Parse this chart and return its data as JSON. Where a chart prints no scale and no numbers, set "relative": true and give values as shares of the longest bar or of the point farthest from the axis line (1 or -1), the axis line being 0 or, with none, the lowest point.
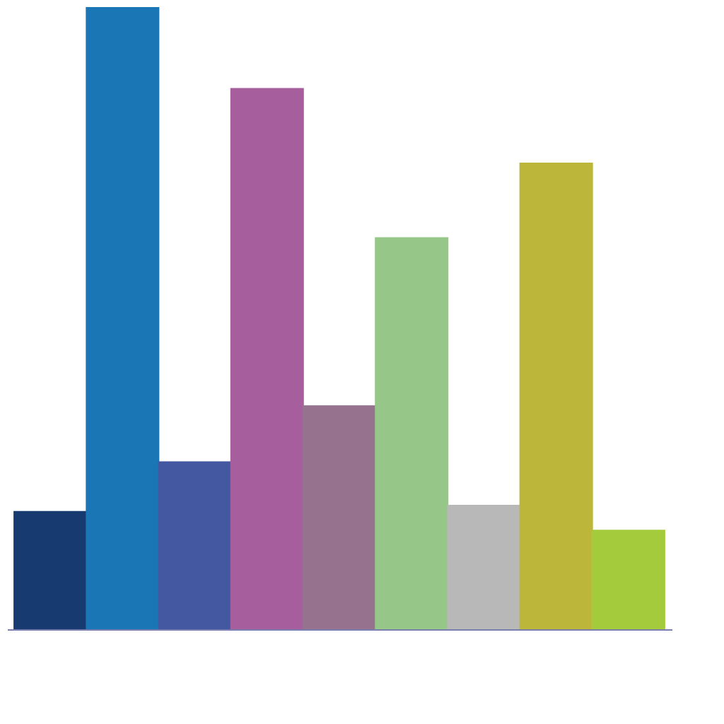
{
  "chart_data": {
    "type": "bar",
    "relative": true,
    "categories": [
      null,
      null,
      null,
      null,
      null,
      null,
      null,
      null,
      null
    ],
    "values": [
      0.19,
      1,
      0.27,
      0.87,
      0.36,
      0.63,
      0.2,
      0.75,
      0.16
    ],
    "colors": [
      "#173a70",
      "#1a76b4",
      "#4458a2",
      "#a65f9c",
      "#97728f",
      "#96c788",
      "#b8b8b8",
      "#bcb73a",
      "#a3cb3c"
    ],
    "grid": false
  }
}
